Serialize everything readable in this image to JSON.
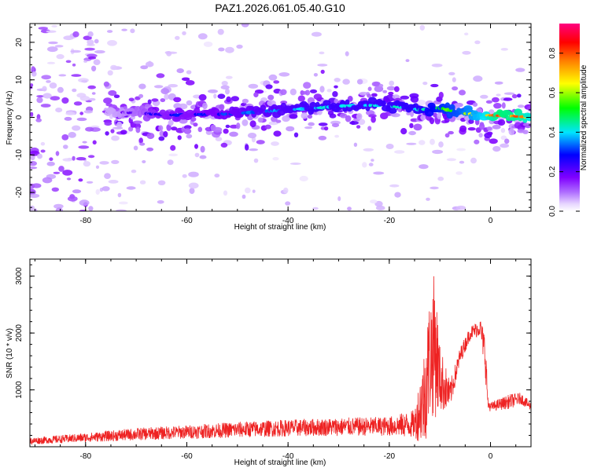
{
  "title": "PAZ1.2026.061.05.40.G10",
  "chart_data": [
    {
      "type": "heatmap",
      "xlabel": "Height of straight line (km)",
      "ylabel": "Frequency (Hz)",
      "xlim": [
        -91,
        8
      ],
      "ylim": [
        -25,
        25
      ],
      "xticks": [
        -80,
        -60,
        -40,
        -20,
        0
      ],
      "yticks": [
        -20,
        -10,
        0,
        10,
        20
      ],
      "colorbar": {
        "label": "Normalized spectral amplitude",
        "range": [
          0,
          0.95
        ],
        "ticks": [
          0.0,
          0.2,
          0.4,
          0.6,
          0.8
        ],
        "colormap": [
          "#ffffff",
          "#e6d4ff",
          "#c8a0ff",
          "#7f00ff",
          "#0000ff",
          "#00e5ff",
          "#00ff00",
          "#ffff00",
          "#ff8000",
          "#ff0000",
          "#ff0080"
        ]
      },
      "ridge": {
        "x": [
          -76,
          -70,
          -66,
          -62,
          -58,
          -54,
          -50,
          -46,
          -42,
          -38,
          -34,
          -30,
          -26,
          -22,
          -18,
          -14,
          -10,
          -6,
          -2,
          2,
          6,
          8
        ],
        "center_hz": [
          1.5,
          1.2,
          0.8,
          0.6,
          0.8,
          0.8,
          1.0,
          1.5,
          1.8,
          2.2,
          2.5,
          3.0,
          3.2,
          3.2,
          2.8,
          2.0,
          2.5,
          1.2,
          0.6,
          0.4,
          0.2,
          0.0
        ],
        "peak_amplitude": [
          0.15,
          0.22,
          0.28,
          0.3,
          0.3,
          0.32,
          0.34,
          0.36,
          0.38,
          0.4,
          0.42,
          0.42,
          0.42,
          0.42,
          0.44,
          0.45,
          0.55,
          0.6,
          0.7,
          0.85,
          0.8,
          0.75
        ]
      }
    },
    {
      "type": "line",
      "xlabel": "Height of straight line (km)",
      "ylabel": "SNR (10 * v/v)",
      "xlim": [
        -91,
        8
      ],
      "ylim": [
        0,
        3300
      ],
      "xticks": [
        -80,
        -60,
        -40,
        -20,
        0
      ],
      "yticks": [
        1000,
        2000,
        3000
      ],
      "series": [
        {
          "color": "#ee2222",
          "envelope_x": [
            -91,
            -80,
            -70,
            -60,
            -50,
            -40,
            -30,
            -20,
            -15,
            -13,
            -12,
            -11,
            -10,
            -8,
            -6,
            -4,
            -2,
            -1,
            -0.5,
            0,
            4,
            6,
            8
          ],
          "envelope_mean": [
            100,
            160,
            220,
            260,
            300,
            330,
            350,
            360,
            400,
            900,
            1600,
            1800,
            1200,
            900,
            1600,
            2000,
            2100,
            1600,
            750,
            700,
            800,
            850,
            700
          ],
          "envelope_noise": [
            60,
            80,
            110,
            120,
            140,
            150,
            160,
            170,
            250,
            900,
            1100,
            1300,
            600,
            250,
            150,
            120,
            150,
            400,
            120,
            80,
            130,
            100,
            80
          ]
        }
      ]
    }
  ]
}
